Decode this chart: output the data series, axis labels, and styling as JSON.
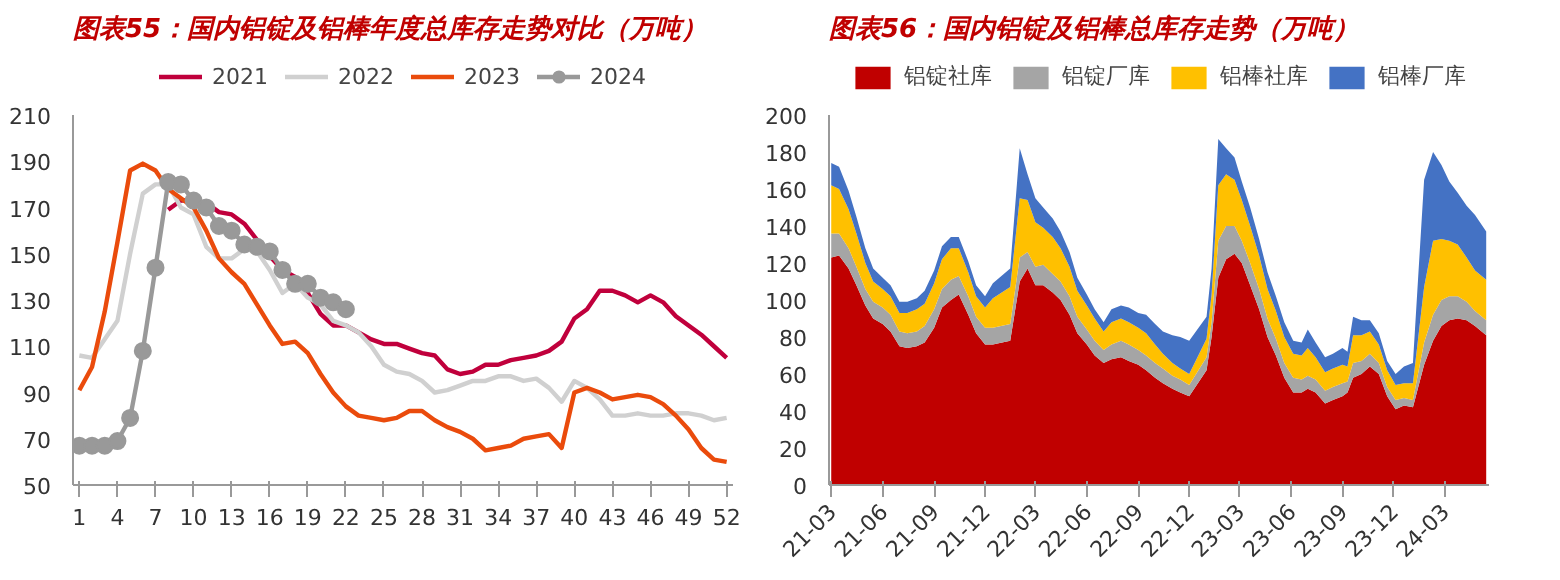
{
  "chart_data": [
    {
      "type": "line",
      "title": "图表55：国内铝锭及铝棒年度总库存走势对比（万吨）",
      "x": [
        1,
        2,
        3,
        4,
        5,
        6,
        7,
        8,
        9,
        10,
        11,
        12,
        13,
        14,
        15,
        16,
        17,
        18,
        19,
        20,
        21,
        22,
        23,
        24,
        25,
        26,
        27,
        28,
        29,
        30,
        31,
        32,
        33,
        34,
        35,
        36,
        37,
        38,
        39,
        40,
        41,
        42,
        43,
        44,
        45,
        46,
        47,
        48,
        49,
        50,
        51,
        52
      ],
      "xlim": [
        0.5,
        52.5
      ],
      "xticks": [
        1,
        4,
        7,
        10,
        13,
        16,
        19,
        22,
        25,
        28,
        31,
        34,
        37,
        40,
        43,
        46,
        49,
        52
      ],
      "ylim": [
        50,
        210
      ],
      "yticks": [
        50,
        70,
        90,
        110,
        130,
        150,
        170,
        190,
        210
      ],
      "grid": false,
      "legend": "top",
      "line_style": "solid",
      "marker": "none",
      "series": [
        {
          "name": "2021",
          "color": "#c0003c",
          "values": [
            null,
            null,
            null,
            null,
            null,
            null,
            null,
            169,
            173,
            173,
            172,
            168,
            167,
            163,
            156,
            149,
            143,
            140,
            133,
            124,
            119,
            119,
            116,
            113,
            111,
            111,
            109,
            107,
            106,
            100,
            98,
            99,
            102,
            102,
            104,
            105,
            106,
            108,
            112,
            122,
            126,
            134,
            134,
            132,
            129,
            132,
            129,
            123,
            119,
            115,
            110,
            105
          ]
        },
        {
          "name": "2022",
          "color": "#d0d0d0",
          "values": [
            106,
            105,
            113,
            121,
            150,
            176,
            180,
            180,
            170,
            167,
            153,
            148,
            148,
            152,
            151,
            143,
            133,
            137,
            131,
            128,
            121,
            119,
            116,
            110,
            102,
            99,
            98,
            95,
            90,
            91,
            93,
            95,
            95,
            97,
            97,
            95,
            96,
            92,
            86,
            95,
            92,
            87,
            80,
            80,
            81,
            80,
            80,
            81,
            81,
            80,
            78,
            79
          ]
        },
        {
          "name": "2023",
          "color": "#ea4b0c",
          "values": [
            91,
            101,
            125,
            155,
            186,
            189,
            186,
            178,
            174,
            170,
            160,
            148,
            142,
            137,
            128,
            119,
            111,
            112,
            107,
            98,
            90,
            84,
            80,
            79,
            78,
            79,
            82,
            82,
            78,
            75,
            73,
            70,
            65,
            66,
            67,
            70,
            71,
            72,
            66,
            90,
            92,
            90,
            87,
            88,
            89,
            88,
            85,
            80,
            74,
            66,
            61,
            60
          ]
        },
        {
          "name": "2024",
          "color": "#999999",
          "marker": "circle",
          "values": [
            67,
            67,
            67,
            69,
            79,
            108,
            144,
            181,
            180,
            173,
            170,
            162,
            160,
            154,
            153,
            151,
            143,
            137,
            137,
            131,
            129,
            126,
            null,
            null,
            null,
            null,
            null,
            null,
            null,
            null,
            null,
            null,
            null,
            null,
            null,
            null,
            null,
            null,
            null,
            null,
            null,
            null,
            null,
            null,
            null,
            null,
            null,
            null,
            null,
            null,
            null,
            null
          ]
        }
      ]
    },
    {
      "type": "area",
      "stacked": true,
      "title": "图表56：国内铝锭及铝棒总库存走势（万吨）",
      "x": [
        "2021-03-01",
        "2021-03-15",
        "2021-04-01",
        "2021-04-15",
        "2021-05-01",
        "2021-05-15",
        "2021-06-01",
        "2021-06-15",
        "2021-07-01",
        "2021-07-15",
        "2021-08-01",
        "2021-08-15",
        "2021-09-01",
        "2021-09-15",
        "2021-10-01",
        "2021-10-15",
        "2021-11-01",
        "2021-11-15",
        "2021-12-01",
        "2021-12-15",
        "2022-01-15",
        "2022-02-01",
        "2022-02-15",
        "2022-03-01",
        "2022-03-15",
        "2022-04-01",
        "2022-04-15",
        "2022-05-01",
        "2022-05-15",
        "2022-06-01",
        "2022-06-15",
        "2022-07-01",
        "2022-07-15",
        "2022-08-01",
        "2022-08-15",
        "2022-09-01",
        "2022-09-15",
        "2022-10-01",
        "2022-10-15",
        "2022-11-01",
        "2022-11-15",
        "2022-12-01",
        "2023-01-01",
        "2023-01-10",
        "2023-01-22",
        "2023-02-05",
        "2023-02-20",
        "2023-03-05",
        "2023-03-20",
        "2023-04-05",
        "2023-04-20",
        "2023-05-05",
        "2023-05-20",
        "2023-06-05",
        "2023-06-20",
        "2023-07-01",
        "2023-07-15",
        "2023-08-01",
        "2023-08-15",
        "2023-09-01",
        "2023-09-10",
        "2023-09-20",
        "2023-10-05",
        "2023-10-20",
        "2023-11-05",
        "2023-11-20",
        "2023-12-05",
        "2023-12-20",
        "2024-01-05",
        "2024-01-25",
        "2024-02-10",
        "2024-02-25",
        "2024-03-10",
        "2024-03-25",
        "2024-04-10",
        "2024-04-25",
        "2024-05-15"
      ],
      "xlim": [
        "2021-02-25",
        "2024-05-20"
      ],
      "xticks": [
        {
          "value": "2021-03",
          "label": "21-03"
        },
        {
          "value": "2021-06",
          "label": "21-06"
        },
        {
          "value": "2021-09",
          "label": "21-09"
        },
        {
          "value": "2021-12",
          "label": "21-12"
        },
        {
          "value": "2022-03",
          "label": "22-03"
        },
        {
          "value": "2022-06",
          "label": "22-06"
        },
        {
          "value": "2022-09",
          "label": "22-09"
        },
        {
          "value": "2022-12",
          "label": "22-12"
        },
        {
          "value": "2023-03",
          "label": "23-03"
        },
        {
          "value": "2023-06",
          "label": "23-06"
        },
        {
          "value": "2023-09",
          "label": "23-09"
        },
        {
          "value": "2023-12",
          "label": "23-12"
        },
        {
          "value": "2024-03",
          "label": "24-03"
        }
      ],
      "ylim": [
        0,
        200
      ],
      "yticks": [
        0,
        20,
        40,
        60,
        80,
        100,
        120,
        140,
        160,
        180,
        200
      ],
      "grid": false,
      "legend": "top",
      "series": [
        {
          "name": "铝锭社库",
          "color": "#c00000",
          "values": [
            123,
            124,
            117,
            108,
            97,
            90,
            87,
            83,
            75,
            74,
            75,
            77,
            85,
            96,
            100,
            103,
            92,
            82,
            76,
            76,
            78,
            110,
            117,
            108,
            108,
            104,
            100,
            92,
            82,
            76,
            70,
            66,
            68,
            69,
            67,
            65,
            62,
            58,
            55,
            52,
            50,
            48,
            62,
            80,
            112,
            122,
            125,
            120,
            108,
            95,
            80,
            70,
            58,
            50,
            50,
            52,
            50,
            44,
            46,
            48,
            50,
            58,
            60,
            64,
            60,
            48,
            41,
            43,
            42,
            65,
            78,
            86,
            89,
            90,
            89,
            86,
            81
          ]
        },
        {
          "name": "铝锭厂库",
          "color": "#a5a5a5",
          "values": [
            13,
            12,
            11,
            10,
            9,
            9,
            9,
            9,
            8,
            8,
            8,
            9,
            10,
            10,
            11,
            10,
            10,
            9,
            9,
            9,
            9,
            13,
            9,
            10,
            11,
            10,
            10,
            10,
            9,
            8,
            8,
            7,
            8,
            9,
            9,
            8,
            8,
            8,
            8,
            7,
            7,
            6,
            7,
            8,
            20,
            18,
            15,
            12,
            12,
            11,
            10,
            9,
            8,
            8,
            7,
            7,
            7,
            7,
            7,
            7,
            6,
            8,
            7,
            7,
            6,
            5,
            5,
            4,
            4,
            12,
            14,
            14,
            13,
            12,
            10,
            8,
            8
          ]
        },
        {
          "name": "铝棒社库",
          "color": "#ffc000",
          "values": [
            26,
            24,
            21,
            18,
            14,
            11,
            10,
            10,
            10,
            11,
            12,
            12,
            14,
            16,
            17,
            15,
            13,
            11,
            11,
            16,
            20,
            32,
            28,
            24,
            20,
            20,
            18,
            16,
            14,
            13,
            12,
            10,
            12,
            12,
            12,
            12,
            12,
            10,
            8,
            7,
            6,
            6,
            10,
            15,
            30,
            28,
            25,
            22,
            20,
            18,
            16,
            15,
            14,
            13,
            13,
            15,
            12,
            10,
            10,
            10,
            8,
            15,
            14,
            12,
            10,
            9,
            8,
            8,
            9,
            30,
            40,
            33,
            30,
            28,
            24,
            22,
            22
          ]
        },
        {
          "name": "铝棒厂库",
          "color": "#4472c4",
          "values": [
            12,
            12,
            10,
            9,
            8,
            7,
            6,
            6,
            6,
            6,
            6,
            7,
            7,
            7,
            6,
            6,
            6,
            6,
            6,
            8,
            10,
            27,
            14,
            13,
            11,
            10,
            9,
            8,
            7,
            6,
            5,
            5,
            7,
            7,
            8,
            8,
            10,
            11,
            12,
            15,
            17,
            18,
            12,
            14,
            25,
            14,
            12,
            10,
            10,
            9,
            9,
            8,
            8,
            7,
            7,
            10,
            8,
            8,
            8,
            9,
            8,
            10,
            8,
            6,
            6,
            5,
            6,
            9,
            11,
            58,
            48,
            40,
            32,
            28,
            28,
            30,
            26
          ]
        }
      ]
    }
  ]
}
